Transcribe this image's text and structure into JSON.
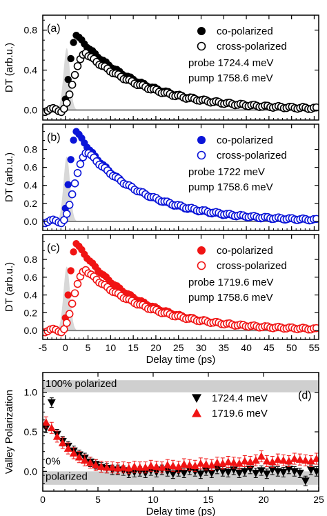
{
  "chart_data": [
    {
      "type": "scatter",
      "panel_label": "(a)",
      "ylabel": "DT (arb.u.)",
      "xlim": [
        -5,
        56
      ],
      "ylim": [
        -0.1,
        0.95
      ],
      "yticks": [
        0.0,
        0.4,
        0.8
      ],
      "annotations": [
        "probe 1724.4 meV",
        "pump 1758.6 meV"
      ],
      "legend_position": "top-right",
      "pump_profile": {
        "center": 0.3,
        "width": 1.5,
        "height": 0.62,
        "color": "#d8d8d8"
      },
      "series": [
        {
          "name": "co-polarized",
          "marker": "filled-circle",
          "color": "#000000",
          "peak_x": 2.5,
          "peak": 0.75,
          "rise": 1.5,
          "decay": 14,
          "start": -5
        },
        {
          "name": "cross-polarized",
          "marker": "open-circle",
          "color": "#000000",
          "peak_x": 4.5,
          "peak": 0.57,
          "rise": 2.0,
          "decay": 14.5,
          "start": -5
        }
      ]
    },
    {
      "type": "scatter",
      "panel_label": "(b)",
      "ylabel": "DT (arb.u.)",
      "xlim": [
        -5,
        56
      ],
      "ylim": [
        -0.1,
        1.08
      ],
      "yticks": [
        0.0,
        0.2,
        0.4,
        0.6,
        0.8
      ],
      "annotations": [
        "probe 1722 meV",
        "pump 1758.6 meV"
      ],
      "legend_position": "top-right",
      "pump_profile": {
        "center": 0.3,
        "width": 1.5,
        "height": 0.72,
        "color": "#d8d8d8"
      },
      "series": [
        {
          "name": "co-polarized",
          "marker": "filled-circle",
          "color": "#0a14d8",
          "peak_x": 2.5,
          "peak": 1.0,
          "rise": 1.4,
          "decay": 12.5,
          "start": -5
        },
        {
          "name": "cross-polarized",
          "marker": "open-circle",
          "color": "#0a14d8",
          "peak_x": 5.0,
          "peak": 0.77,
          "rise": 2.0,
          "decay": 13.5,
          "start": -5
        }
      ]
    },
    {
      "type": "scatter",
      "panel_label": "(c)",
      "ylabel": "DT (arb.u.)",
      "xlabel": "Delay time (ps)",
      "xlim": [
        -5,
        56
      ],
      "ylim": [
        -0.1,
        1.08
      ],
      "xticks": [
        -5,
        0,
        5,
        10,
        15,
        20,
        25,
        30,
        35,
        40,
        45,
        50,
        55
      ],
      "yticks": [
        0.0,
        0.2,
        0.4,
        0.6,
        0.8
      ],
      "annotations": [
        "probe 1719.6 meV",
        "pump 1758.6 meV"
      ],
      "legend_position": "top-right",
      "pump_profile": {
        "center": 0.3,
        "width": 1.5,
        "height": 0.72,
        "color": "#d8d8d8"
      },
      "series": [
        {
          "name": "co-polarized",
          "marker": "filled-circle",
          "color": "#f01414",
          "peak_x": 2.5,
          "peak": 0.98,
          "rise": 1.4,
          "decay": 13,
          "start": -5
        },
        {
          "name": "cross-polarized",
          "marker": "open-circle",
          "color": "#f01414",
          "peak_x": 4.5,
          "peak": 0.68,
          "rise": 2.0,
          "decay": 14,
          "start": -5
        }
      ]
    },
    {
      "type": "scatter",
      "panel_label": "(d)",
      "ylabel": "Valley Polarization",
      "xlabel": "Delay time (ps)",
      "xlim": [
        0,
        25
      ],
      "ylim": [
        -0.25,
        1.25
      ],
      "xticks": [
        0,
        5,
        10,
        15,
        20,
        25
      ],
      "yticks": [
        0.0,
        0.5,
        1.0
      ],
      "bands": [
        {
          "label": "100% polarized",
          "y_from": 1.0,
          "y_to": 1.1
        },
        {
          "label_lines": [
            "0%",
            "polarized"
          ],
          "y_from": -0.1,
          "y_to": 0.0
        }
      ],
      "legend_position": "top-right",
      "series": [
        {
          "name": "1724.4 meV",
          "marker": "down-triangle",
          "color": "#000000",
          "error": 0.06,
          "x": [
            0.3,
            0.8,
            1.3,
            1.8,
            2.3,
            2.8,
            3.3,
            3.8,
            4.3,
            4.8,
            5.3,
            5.8,
            6.3,
            6.8,
            7.3,
            7.8,
            8.3,
            8.8,
            9.3,
            9.8,
            10.3,
            10.8,
            11.3,
            11.8,
            12.3,
            12.8,
            13.3,
            13.8,
            14.3,
            14.8,
            15.3,
            15.8,
            16.3,
            16.8,
            17.3,
            17.8,
            18.3,
            18.8,
            19.3,
            19.8,
            20.3,
            20.8,
            21.3,
            21.8,
            22.3,
            22.8,
            23.3,
            23.8,
            24.3,
            24.8
          ],
          "y": [
            0.55,
            0.87,
            0.47,
            0.38,
            0.32,
            0.26,
            0.21,
            0.17,
            0.12,
            0.09,
            0.05,
            0.04,
            0.02,
            0.02,
            0.01,
            -0.02,
            -0.01,
            0.0,
            -0.02,
            0.01,
            -0.01,
            0.02,
            0.0,
            -0.03,
            0.0,
            -0.02,
            0.02,
            0.0,
            -0.03,
            0.01,
            -0.02,
            0.03,
            0.0,
            -0.01,
            0.02,
            -0.02,
            0.0,
            0.03,
            -0.02,
            0.01,
            -0.03,
            0.02,
            0.0,
            -0.01,
            0.03,
            0.0,
            -0.02,
            -0.12,
            0.02,
            0.0
          ]
        },
        {
          "name": "1719.6 meV",
          "marker": "up-triangle",
          "color": "#f01414",
          "error": 0.07,
          "x": [
            0.3,
            0.8,
            1.3,
            1.8,
            2.3,
            2.8,
            3.3,
            3.8,
            4.3,
            4.8,
            5.3,
            5.8,
            6.3,
            6.8,
            7.3,
            7.8,
            8.3,
            8.8,
            9.3,
            9.8,
            10.3,
            10.8,
            11.3,
            11.8,
            12.3,
            12.8,
            13.3,
            13.8,
            14.3,
            14.8,
            15.3,
            15.8,
            16.3,
            16.8,
            17.3,
            17.8,
            18.3,
            18.8,
            19.3,
            19.8,
            20.3,
            20.8,
            21.3,
            21.8,
            22.3,
            22.8,
            23.3,
            23.8,
            24.3,
            24.8
          ],
          "y": [
            0.62,
            0.55,
            0.44,
            0.36,
            0.29,
            0.23,
            0.18,
            0.14,
            0.11,
            0.08,
            0.06,
            0.05,
            0.05,
            0.04,
            0.05,
            0.04,
            0.06,
            0.05,
            0.05,
            0.07,
            0.06,
            0.05,
            0.08,
            0.07,
            0.06,
            0.09,
            0.08,
            0.07,
            0.1,
            0.09,
            0.08,
            0.11,
            0.1,
            0.12,
            0.11,
            0.1,
            0.13,
            0.12,
            0.14,
            0.19,
            0.13,
            0.12,
            0.15,
            0.14,
            0.13,
            0.16,
            0.15,
            0.14,
            0.13,
            0.16
          ]
        }
      ]
    }
  ]
}
